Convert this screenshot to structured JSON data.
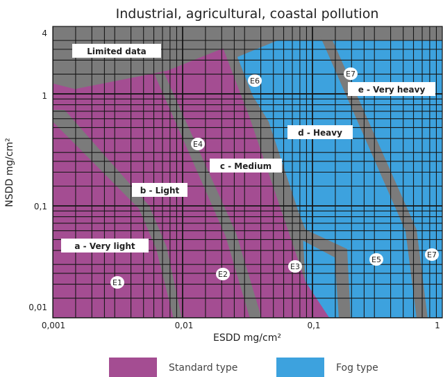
{
  "chart_data": {
    "type": "area",
    "title": "Industrial, agricultural, coastal pollution",
    "xlabel": "ESDD mg/cm²",
    "ylabel": "NSDD mg/cm²",
    "x_scale": "log",
    "y_scale": "log",
    "xlim": [
      0.001,
      1
    ],
    "ylim": [
      0.01,
      4
    ],
    "x_ticks": [
      "0,001",
      "0,01",
      "0,1",
      "1"
    ],
    "y_ticks": [
      "0,01",
      "0,1",
      "1",
      "4"
    ],
    "grid": true,
    "legend_placement": "bottom",
    "series": [
      {
        "name": "Standard type",
        "color": "#a44d92"
      },
      {
        "name": "Fog type",
        "color": "#3da2de"
      }
    ],
    "regions": [
      {
        "label": "a - Very light"
      },
      {
        "label": "b - Light"
      },
      {
        "label": "c - Medium"
      },
      {
        "label": "d - Heavy"
      },
      {
        "label": "e - Very heavy"
      },
      {
        "label": "Limited data"
      }
    ],
    "markers": [
      "E1",
      "E2",
      "E3",
      "E4",
      "E5",
      "E6",
      "E7",
      "E7"
    ],
    "colors": {
      "limited": "#7b7b7b",
      "band": "#7b7b7b",
      "grid": "#161616"
    }
  }
}
